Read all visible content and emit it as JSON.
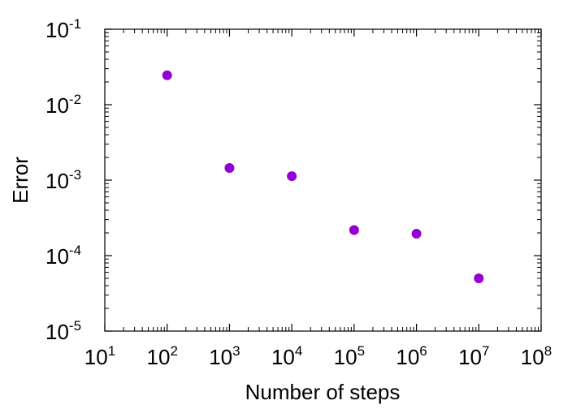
{
  "chart_data": {
    "type": "scatter",
    "title": "",
    "xlabel": "Number of steps",
    "ylabel": "Error",
    "xscale": "log",
    "yscale": "log",
    "xlim": [
      10,
      100000000
    ],
    "ylim": [
      1e-05,
      0.1
    ],
    "grid": false,
    "legend": "none",
    "x_ticks": [
      {
        "base": "10",
        "exp": "1"
      },
      {
        "base": "10",
        "exp": "2"
      },
      {
        "base": "10",
        "exp": "3"
      },
      {
        "base": "10",
        "exp": "4"
      },
      {
        "base": "10",
        "exp": "5"
      },
      {
        "base": "10",
        "exp": "6"
      },
      {
        "base": "10",
        "exp": "7"
      },
      {
        "base": "10",
        "exp": "8"
      }
    ],
    "y_ticks": [
      {
        "base": "10",
        "exp": "-5"
      },
      {
        "base": "10",
        "exp": "-4"
      },
      {
        "base": "10",
        "exp": "-3"
      },
      {
        "base": "10",
        "exp": "-2"
      },
      {
        "base": "10",
        "exp": "-1"
      }
    ],
    "series": [
      {
        "color": "#9400d3",
        "points": [
          {
            "x": 100,
            "y": 0.0245
          },
          {
            "x": 1000,
            "y": 0.00145
          },
          {
            "x": 10000,
            "y": 0.00113
          },
          {
            "x": 100000,
            "y": 0.000218
          },
          {
            "x": 1000000,
            "y": 0.000195
          },
          {
            "x": 10000000,
            "y": 5e-05
          }
        ]
      }
    ]
  }
}
